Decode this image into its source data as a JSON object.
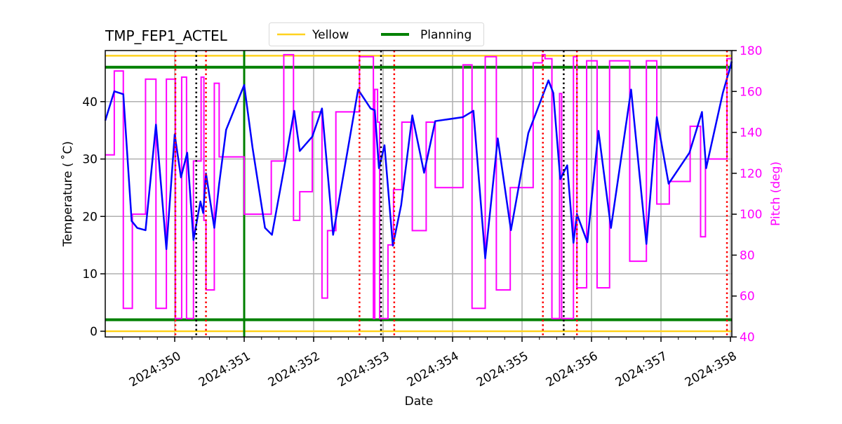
{
  "chart_data": {
    "type": "line",
    "title": "TMP_FEP1_ACTEL",
    "xlabel": "Date",
    "ylabel": "Temperature ($^\\circ$C)",
    "ylabel_display": "Temperature ( ˚C)",
    "y2label": "Pitch (deg)",
    "xlim": [
      349.0,
      358.02
    ],
    "ylim": [
      -1.0,
      48.9
    ],
    "y2lim": [
      40,
      180
    ],
    "grid": true,
    "legend_position": "top-center",
    "x_ticks": [
      {
        "value": 350,
        "label": "2024:350"
      },
      {
        "value": 351,
        "label": "2024:351"
      },
      {
        "value": 352,
        "label": "2024:352"
      },
      {
        "value": 353,
        "label": "2024:353"
      },
      {
        "value": 354,
        "label": "2024:354"
      },
      {
        "value": 355,
        "label": "2024:355"
      },
      {
        "value": 356,
        "label": "2024:356"
      },
      {
        "value": 357,
        "label": "2024:357"
      },
      {
        "value": 358,
        "label": "2024:358"
      }
    ],
    "x_minor_step": 0.25,
    "y_ticks": [
      0,
      10,
      20,
      30,
      40
    ],
    "y2_ticks": [
      40,
      60,
      80,
      100,
      120,
      140,
      160,
      180
    ],
    "colors": {
      "temperature": "#0000ff",
      "pitch": "#ff00ff",
      "yellow": "#ffd21f",
      "planning": "#008000",
      "grid": "#b0b0b0",
      "red_marker": "#ff0000",
      "black_marker": "#000000",
      "y2_axis": "#ff00ff"
    },
    "limits": [
      {
        "name": "Yellow",
        "values": [
          48,
          0
        ],
        "color": "#ffd21f"
      },
      {
        "name": "Planning",
        "values": [
          46,
          2
        ],
        "color": "#008000"
      }
    ],
    "planning_vertical": [
      351.0
    ],
    "red_dotted_lines": [
      350.01,
      350.45,
      352.66,
      353.16,
      355.3,
      355.79,
      357.95
    ],
    "black_dotted_lines": [
      350.31,
      352.97,
      355.6
    ],
    "temperature": [
      [
        349.0,
        36.7
      ],
      [
        349.13,
        41.8
      ],
      [
        349.26,
        41.3
      ],
      [
        349.38,
        19.2
      ],
      [
        349.46,
        18.0
      ],
      [
        349.58,
        17.6
      ],
      [
        349.73,
        36.0
      ],
      [
        349.88,
        14.3
      ],
      [
        350.0,
        34.3
      ],
      [
        350.09,
        26.8
      ],
      [
        350.18,
        31.1
      ],
      [
        350.27,
        15.9
      ],
      [
        350.37,
        22.6
      ],
      [
        350.41,
        20.6
      ],
      [
        350.45,
        27.5
      ],
      [
        350.57,
        18.0
      ],
      [
        350.64,
        25.7
      ],
      [
        350.74,
        35.1
      ],
      [
        351.0,
        42.9
      ],
      [
        351.12,
        32.0
      ],
      [
        351.3,
        18.0
      ],
      [
        351.4,
        16.8
      ],
      [
        351.57,
        28.1
      ],
      [
        351.72,
        38.4
      ],
      [
        351.8,
        31.4
      ],
      [
        351.98,
        33.9
      ],
      [
        352.12,
        38.8
      ],
      [
        352.28,
        16.8
      ],
      [
        352.64,
        42.1
      ],
      [
        352.82,
        38.8
      ],
      [
        352.88,
        38.5
      ],
      [
        352.94,
        28.4
      ],
      [
        353.02,
        32.4
      ],
      [
        353.14,
        14.9
      ],
      [
        353.26,
        22.0
      ],
      [
        353.42,
        37.6
      ],
      [
        353.59,
        27.6
      ],
      [
        353.75,
        36.6
      ],
      [
        354.15,
        37.3
      ],
      [
        354.3,
        38.4
      ],
      [
        354.47,
        12.7
      ],
      [
        354.65,
        33.6
      ],
      [
        354.84,
        17.6
      ],
      [
        355.09,
        34.5
      ],
      [
        355.38,
        43.7
      ],
      [
        355.45,
        41.5
      ],
      [
        355.55,
        26.5
      ],
      [
        355.65,
        28.9
      ],
      [
        355.74,
        15.4
      ],
      [
        355.79,
        20.4
      ],
      [
        355.94,
        15.5
      ],
      [
        356.1,
        34.9
      ],
      [
        356.28,
        18.0
      ],
      [
        356.57,
        42.1
      ],
      [
        356.79,
        15.2
      ],
      [
        356.94,
        37.3
      ],
      [
        357.11,
        25.7
      ],
      [
        357.41,
        31.1
      ],
      [
        357.59,
        38.2
      ],
      [
        357.65,
        28.4
      ],
      [
        357.89,
        41.5
      ],
      [
        358.02,
        47.0
      ]
    ],
    "pitch_steps": [
      [
        349.0,
        129
      ],
      [
        349.13,
        170
      ],
      [
        349.26,
        54
      ],
      [
        349.39,
        100
      ],
      [
        349.58,
        166
      ],
      [
        349.73,
        54
      ],
      [
        349.88,
        166
      ],
      [
        350.01,
        49
      ],
      [
        350.1,
        167
      ],
      [
        350.17,
        49
      ],
      [
        350.27,
        126
      ],
      [
        350.38,
        167
      ],
      [
        350.42,
        97
      ],
      [
        350.45,
        63
      ],
      [
        350.57,
        164
      ],
      [
        350.64,
        128
      ],
      [
        351.0,
        100
      ],
      [
        351.39,
        126
      ],
      [
        351.57,
        178
      ],
      [
        351.71,
        97
      ],
      [
        351.8,
        111
      ],
      [
        351.98,
        150
      ],
      [
        352.12,
        59
      ],
      [
        352.2,
        92
      ],
      [
        352.32,
        150
      ],
      [
        352.66,
        177
      ],
      [
        352.86,
        49
      ],
      [
        352.88,
        161
      ],
      [
        352.92,
        145
      ],
      [
        352.95,
        49
      ],
      [
        353.07,
        85
      ],
      [
        353.15,
        112
      ],
      [
        353.27,
        145
      ],
      [
        353.42,
        92
      ],
      [
        353.62,
        145
      ],
      [
        353.75,
        113
      ],
      [
        354.15,
        173
      ],
      [
        354.28,
        54
      ],
      [
        354.47,
        177
      ],
      [
        354.63,
        63
      ],
      [
        354.83,
        113
      ],
      [
        355.16,
        174
      ],
      [
        355.29,
        178
      ],
      [
        355.33,
        176
      ],
      [
        355.43,
        49
      ],
      [
        355.54,
        159
      ],
      [
        355.57,
        49
      ],
      [
        355.74,
        177
      ],
      [
        355.79,
        64
      ],
      [
        355.93,
        175
      ],
      [
        356.08,
        64
      ],
      [
        356.26,
        175
      ],
      [
        356.55,
        77
      ],
      [
        356.79,
        175
      ],
      [
        356.94,
        105
      ],
      [
        357.12,
        116
      ],
      [
        357.42,
        143
      ],
      [
        357.57,
        89
      ],
      [
        357.64,
        127
      ],
      [
        357.95,
        176
      ],
      [
        358.02,
        176
      ]
    ]
  }
}
